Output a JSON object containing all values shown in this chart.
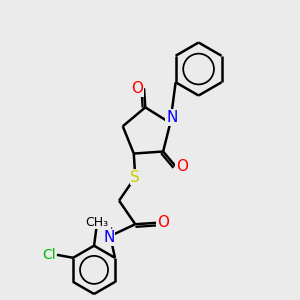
{
  "bg_color": "#ebebeb",
  "bond_color": "#000000",
  "bond_width": 1.8,
  "atom_colors": {
    "N": "#0000ff",
    "O": "#ff0000",
    "S": "#cccc00",
    "Cl": "#00bb00",
    "C": "#000000",
    "H": "#555555"
  },
  "figsize": [
    3.0,
    3.0
  ],
  "dpi": 100,
  "xlim": [
    0,
    10
  ],
  "ylim": [
    0,
    10
  ]
}
